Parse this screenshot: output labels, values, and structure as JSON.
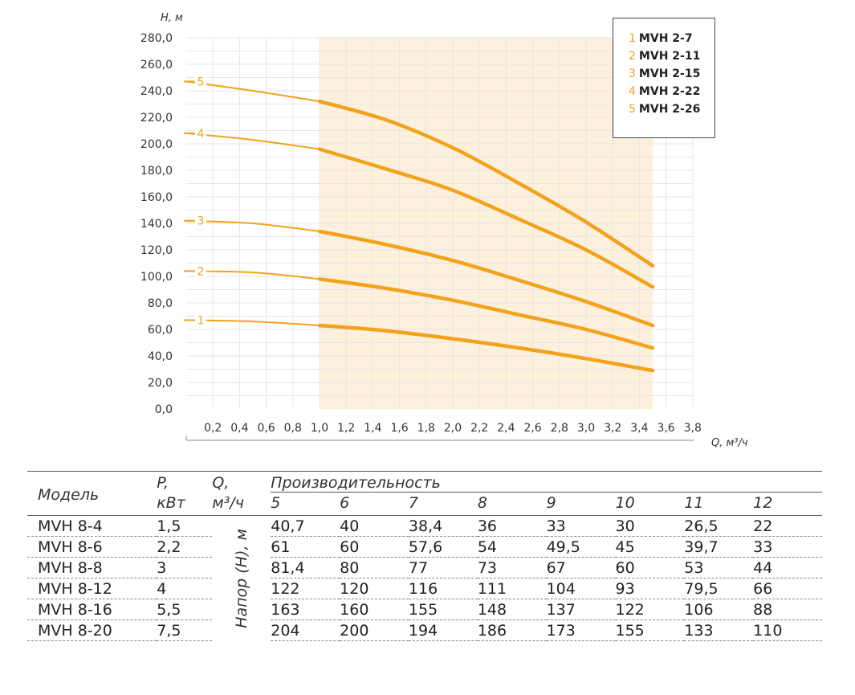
{
  "chart_data": {
    "type": "line",
    "ylabel": "H, м",
    "xlabel": "Q, м³/ч",
    "ylim": [
      0,
      280
    ],
    "xlim": [
      0,
      3.8
    ],
    "y_ticks": [
      "0,0",
      "20,0",
      "40,0",
      "60,0",
      "80,0",
      "100,0",
      "120,0",
      "140,0",
      "160,0",
      "180,0",
      "200,0",
      "220,0",
      "240,0",
      "260,0",
      "280,0"
    ],
    "x_ticks": [
      "0,2",
      "0,4",
      "0,6",
      "0,8",
      "1,0",
      "1,2",
      "1,4",
      "1,6",
      "1,8",
      "2,0",
      "2,2",
      "2,4",
      "2,6",
      "2,8",
      "3,0",
      "3,2",
      "3,4",
      "3,6",
      "3,8"
    ],
    "highlight_range": [
      1.0,
      3.5
    ],
    "grid": true,
    "legend_position": "top-right",
    "line_color": "#f2a31b",
    "highlight_color": "#fdf0dc",
    "series": [
      {
        "name": "MVH 2-7",
        "label": "1",
        "x": [
          0,
          0.5,
          1.0,
          1.5,
          2.0,
          2.5,
          3.0,
          3.5
        ],
        "y": [
          67,
          66,
          63,
          59,
          53,
          46,
          38,
          29
        ]
      },
      {
        "name": "MVH 2-11",
        "label": "2",
        "x": [
          0,
          0.5,
          1.0,
          1.5,
          2.0,
          2.5,
          3.0,
          3.5
        ],
        "y": [
          104,
          103,
          98,
          91,
          82,
          71,
          60,
          46
        ]
      },
      {
        "name": "MVH 2-15",
        "label": "3",
        "x": [
          0,
          0.5,
          1.0,
          1.5,
          2.0,
          2.5,
          3.0,
          3.5
        ],
        "y": [
          142,
          140,
          134,
          124,
          112,
          97,
          81,
          63
        ]
      },
      {
        "name": "MVH 2-22",
        "label": "4",
        "x": [
          0,
          0.5,
          1.0,
          1.5,
          2.0,
          2.5,
          3.0,
          3.5
        ],
        "y": [
          208,
          203,
          196,
          181,
          165,
          143,
          120,
          92
        ]
      },
      {
        "name": "MVH 2-26",
        "label": "5",
        "x": [
          0,
          0.5,
          1.0,
          1.5,
          2.0,
          2.5,
          3.0,
          3.5
        ],
        "y": [
          247,
          240,
          232,
          218,
          197,
          170,
          141,
          108
        ]
      }
    ]
  },
  "legend": [
    {
      "num": "1",
      "name": "MVH 2-7"
    },
    {
      "num": "2",
      "name": "MVH 2-11"
    },
    {
      "num": "3",
      "name": "MVH 2-15"
    },
    {
      "num": "4",
      "name": "MVH 2-22"
    },
    {
      "num": "5",
      "name": "MVH 2-26"
    }
  ],
  "table": {
    "headers": {
      "model": "Модель",
      "power": "P,",
      "power_unit": "кВт",
      "flow": "Q,",
      "flow_unit": "м³/ч",
      "performance": "Производительность",
      "head_label": "Напор (H), м",
      "flow_values": [
        "5",
        "6",
        "7",
        "8",
        "9",
        "10",
        "11",
        "12"
      ]
    },
    "rows": [
      {
        "model": "MVH 8-4",
        "power": "1,5",
        "values": [
          "40,7",
          "40",
          "38,4",
          "36",
          "33",
          "30",
          "26,5",
          "22"
        ]
      },
      {
        "model": "MVH 8-6",
        "power": "2,2",
        "values": [
          "61",
          "60",
          "57,6",
          "54",
          "49,5",
          "45",
          "39,7",
          "33"
        ]
      },
      {
        "model": "MVH 8-8",
        "power": "3",
        "values": [
          "81,4",
          "80",
          "77",
          "73",
          "67",
          "60",
          "53",
          "44"
        ]
      },
      {
        "model": "MVH 8-12",
        "power": "4",
        "values": [
          "122",
          "120",
          "116",
          "111",
          "104",
          "93",
          "79,5",
          "66"
        ]
      },
      {
        "model": "MVH 8-16",
        "power": "5,5",
        "values": [
          "163",
          "160",
          "155",
          "148",
          "137",
          "122",
          "106",
          "88"
        ]
      },
      {
        "model": "MVH 8-20",
        "power": "7,5",
        "values": [
          "204",
          "200",
          "194",
          "186",
          "173",
          "155",
          "133",
          "110"
        ]
      }
    ]
  }
}
